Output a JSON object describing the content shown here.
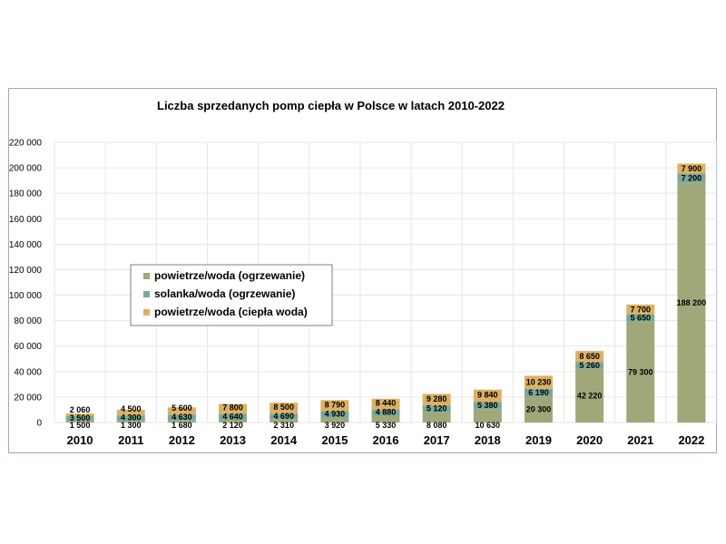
{
  "chart_data": {
    "type": "bar",
    "stacked": true,
    "title": "Liczba sprzedanych pomp ciepła w Polsce w latach 2010-2022",
    "xlabel": "",
    "ylabel": "",
    "categories": [
      "2010",
      "2011",
      "2012",
      "2013",
      "2014",
      "2015",
      "2016",
      "2017",
      "2018",
      "2019",
      "2020",
      "2021",
      "2022"
    ],
    "ylim": [
      0,
      220000
    ],
    "ytick_values": [
      0,
      20000,
      40000,
      60000,
      80000,
      100000,
      120000,
      140000,
      160000,
      180000,
      200000,
      220000
    ],
    "ytick_labels": [
      "0",
      "20 000",
      "40 000",
      "60 000",
      "80 000",
      "100 000",
      "120 000",
      "140 000",
      "160 000",
      "180 000",
      "200 000",
      "220 000"
    ],
    "grid": true,
    "legend_placement": "center-left",
    "series": [
      {
        "name": "powietrze/woda (ogrzewanie)",
        "color": "#a0a87a",
        "values": [
          1500,
          1300,
          1680,
          2120,
          2310,
          3920,
          5330,
          8080,
          10630,
          20300,
          42220,
          79300,
          188200
        ],
        "labels": [
          "1 500",
          "1 300",
          "1 680",
          "2 120",
          "2 310",
          "3 920",
          "5 330",
          "8 080",
          "10 630",
          "20 300",
          "42 220",
          "79 300",
          "188 200"
        ]
      },
      {
        "name": "solanka/woda (ogrzewanie)",
        "color": "#78a99b",
        "values": [
          3500,
          4300,
          4630,
          4640,
          4690,
          4930,
          4880,
          5120,
          5380,
          6190,
          5260,
          5650,
          7200
        ],
        "labels": [
          "3 500",
          "4 300",
          "4 630",
          "4 640",
          "4 690",
          "4 930",
          "4 880",
          "5 120",
          "5 380",
          "6 190",
          "5 260",
          "5 650",
          "7 200"
        ]
      },
      {
        "name": "powietrze/woda (ciepła woda)",
        "color": "#ddb065",
        "values": [
          2060,
          4500,
          5600,
          7800,
          8500,
          8790,
          8440,
          9280,
          9840,
          10230,
          8650,
          7700,
          7900
        ],
        "labels": [
          "2 060",
          "4 500",
          "5 600",
          "7 800",
          "8 500",
          "8 790",
          "8 440",
          "9 280",
          "9 840",
          "10 230",
          "8 650",
          "7 700",
          "7 900"
        ]
      }
    ]
  }
}
